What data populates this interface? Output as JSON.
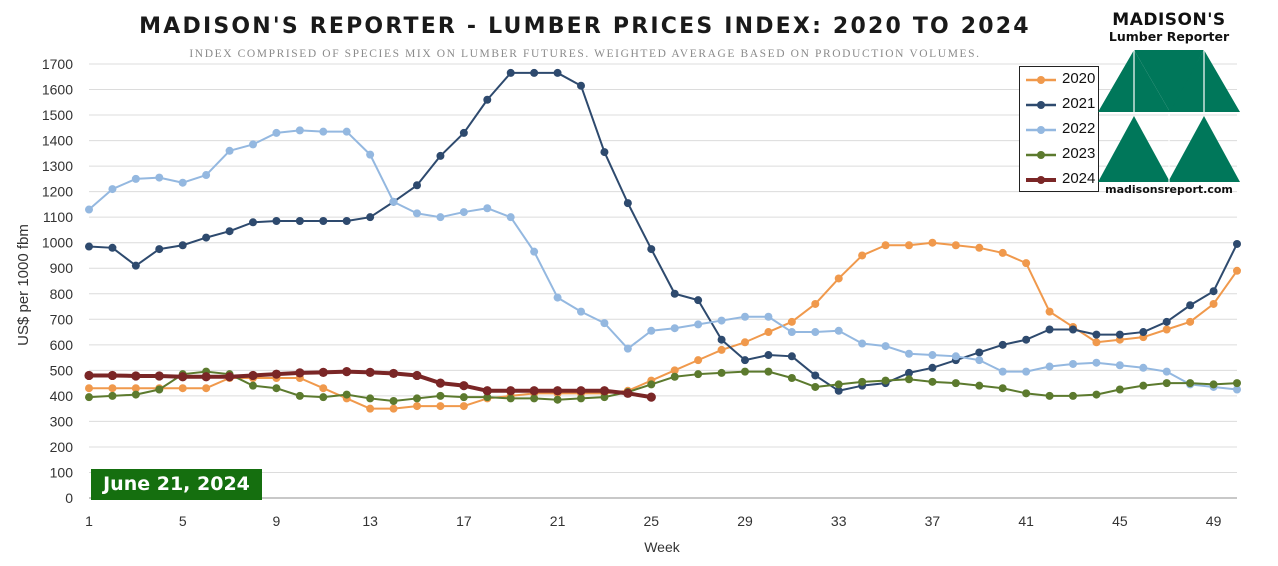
{
  "header": {
    "title": "MADISON'S REPORTER - LUMBER PRICES INDEX: 2020 TO 2024",
    "subtitle": "INDEX COMPRISED OF SPECIES MIX ON LUMBER FUTURES. WEIGHTED AVERAGE BASED ON PRODUCTION VOLUMES."
  },
  "logo": {
    "name": "MADISON'S",
    "subname": "Lumber Reporter",
    "url": "madisonsreport.com",
    "color": "#00775a"
  },
  "date_badge": {
    "text": "June 21, 2024",
    "color": "#156f0f"
  },
  "chart_data": {
    "type": "line",
    "xlabel": "Week",
    "ylabel": "US$ per 1000 fbm",
    "xlim": [
      1,
      50
    ],
    "ylim": [
      0,
      1700
    ],
    "x_ticks": [
      1,
      5,
      9,
      13,
      17,
      21,
      25,
      29,
      33,
      37,
      41,
      45,
      49
    ],
    "y_ticks": [
      0,
      100,
      200,
      300,
      400,
      500,
      600,
      700,
      800,
      900,
      1000,
      1100,
      1200,
      1300,
      1400,
      1500,
      1600,
      1700
    ],
    "grid": "horizontal",
    "legend_position": "right",
    "series": [
      {
        "name": "2020",
        "color": "#f0994c",
        "width": 2,
        "values": [
          430,
          430,
          430,
          430,
          430,
          430,
          470,
          470,
          470,
          470,
          430,
          390,
          350,
          350,
          360,
          360,
          360,
          390,
          400,
          410,
          410,
          410,
          410,
          420,
          460,
          500,
          540,
          580,
          610,
          650,
          690,
          760,
          860,
          950,
          990,
          990,
          1000,
          990,
          980,
          960,
          920,
          730,
          670,
          610,
          620,
          630,
          660,
          690,
          760,
          890
        ]
      },
      {
        "name": "2021",
        "color": "#2e4a6e",
        "width": 2,
        "values": [
          985,
          980,
          910,
          975,
          990,
          1020,
          1045,
          1080,
          1085,
          1085,
          1085,
          1085,
          1100,
          1160,
          1225,
          1340,
          1430,
          1560,
          1665,
          1665,
          1665,
          1615,
          1355,
          1155,
          975,
          800,
          775,
          620,
          540,
          560,
          555,
          480,
          420,
          440,
          450,
          490,
          510,
          540,
          570,
          600,
          620,
          660,
          660,
          640,
          640,
          650,
          690,
          755,
          810,
          995
        ]
      },
      {
        "name": "2022",
        "color": "#94b8e0",
        "width": 2,
        "values": [
          1130,
          1210,
          1250,
          1255,
          1235,
          1265,
          1360,
          1385,
          1430,
          1440,
          1435,
          1435,
          1345,
          1160,
          1115,
          1100,
          1120,
          1135,
          1100,
          965,
          785,
          730,
          685,
          585,
          655,
          665,
          680,
          695,
          710,
          710,
          650,
          650,
          655,
          605,
          595,
          565,
          560,
          555,
          540,
          495,
          495,
          515,
          525,
          530,
          520,
          510,
          495,
          445,
          435,
          425
        ]
      },
      {
        "name": "2023",
        "color": "#5c7a2e",
        "width": 2,
        "values": [
          395,
          400,
          405,
          425,
          485,
          495,
          485,
          440,
          430,
          400,
          395,
          405,
          390,
          380,
          390,
          400,
          395,
          395,
          390,
          390,
          385,
          390,
          395,
          415,
          445,
          475,
          485,
          490,
          495,
          495,
          470,
          435,
          445,
          455,
          460,
          465,
          455,
          450,
          440,
          430,
          410,
          400,
          400,
          405,
          425,
          440,
          450,
          450,
          445,
          450
        ]
      },
      {
        "name": "2024",
        "color": "#7a2626",
        "width": 4,
        "values": [
          480,
          480,
          478,
          478,
          475,
          475,
          475,
          480,
          485,
          490,
          492,
          495,
          492,
          488,
          480,
          450,
          440,
          420,
          420,
          420,
          420,
          420,
          420,
          410,
          395
        ]
      }
    ]
  }
}
